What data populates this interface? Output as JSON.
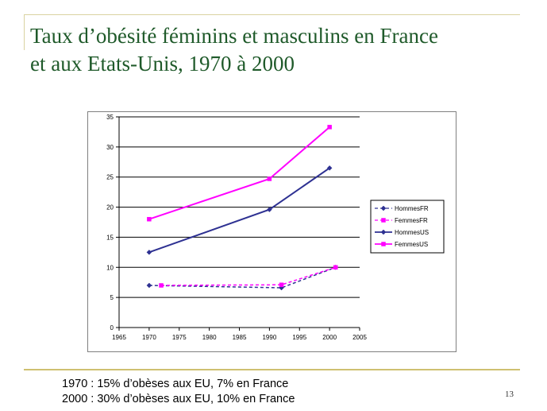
{
  "slide": {
    "title_line1": "Taux d’obésité  féminins et masculins en France",
    "title_line2": "et aux Etats-Unis, 1970 à 2000",
    "note_line1": "1970 : 15% d’obèses aux EU, 7% en France",
    "note_line2": "2000 : 30% d’obèses aux EU, 10% en France",
    "page_number": "13"
  },
  "chart_data": {
    "type": "line",
    "title": "",
    "xlabel": "",
    "ylabel": "",
    "xlim": [
      1965,
      2005
    ],
    "ylim": [
      0,
      35
    ],
    "xticks": [
      1965,
      1970,
      1975,
      1980,
      1985,
      1990,
      1995,
      2000,
      2005
    ],
    "yticks": [
      0,
      5,
      10,
      15,
      20,
      25,
      30,
      35
    ],
    "grid": "horizontal",
    "legend_position": "right",
    "series": [
      {
        "name": "HommesFR",
        "color": "#2e3192",
        "style": "dashed",
        "marker": "diamond",
        "points": [
          [
            1970,
            7
          ],
          [
            1992,
            6.6
          ],
          [
            2001,
            10
          ]
        ]
      },
      {
        "name": "FemmesFR",
        "color": "#ff00ff",
        "style": "dashed",
        "marker": "square",
        "points": [
          [
            1972,
            7
          ],
          [
            1992,
            7.1
          ],
          [
            2001,
            10
          ]
        ]
      },
      {
        "name": "HommesUS",
        "color": "#2e3192",
        "style": "solid",
        "marker": "diamond",
        "points": [
          [
            1970,
            12.5
          ],
          [
            1990,
            19.6
          ],
          [
            2000,
            26.5
          ]
        ]
      },
      {
        "name": "FemmesUS",
        "color": "#ff00ff",
        "style": "solid",
        "marker": "square",
        "points": [
          [
            1970,
            18
          ],
          [
            1990,
            24.7
          ],
          [
            2000,
            33.3
          ]
        ]
      }
    ]
  }
}
